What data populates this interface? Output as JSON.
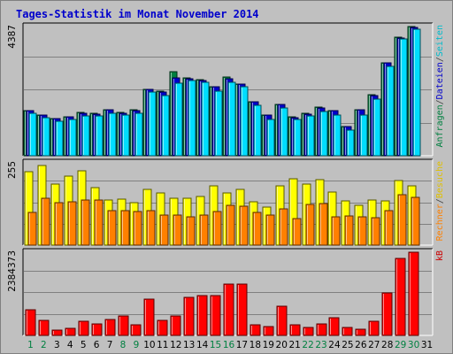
{
  "title": "Tages-Statistik im Monat November 2014",
  "chart_data": [
    {
      "type": "bar",
      "panel": "top",
      "ytick_max_label": "4387",
      "ylim": [
        0,
        4387
      ],
      "grid": true,
      "legend_vertical": [
        {
          "text": "Anfragen",
          "color": "#008040"
        },
        {
          "text": "/",
          "color": "#404040"
        },
        {
          "text": "Dateien",
          "color": "#0000cc"
        },
        {
          "text": "/",
          "color": "#404040"
        },
        {
          "text": "Seiten",
          "color": "#00bbcc"
        }
      ],
      "series": [
        {
          "name": "Anfragen",
          "color": "#008040",
          "values": [
            1530,
            1380,
            1260,
            1330,
            1460,
            1440,
            1570,
            1470,
            1550,
            2260,
            2180,
            2860,
            2640,
            2580,
            2350,
            2680,
            2440,
            1840,
            1390,
            1740,
            1310,
            1430,
            1640,
            1540,
            990,
            1560,
            2060,
            3160,
            4020,
            4380
          ]
        },
        {
          "name": "Dateien",
          "color": "#0000cc",
          "values": [
            1520,
            1370,
            1250,
            1320,
            1450,
            1420,
            1550,
            1450,
            1540,
            2250,
            2170,
            2640,
            2620,
            2560,
            2340,
            2600,
            2420,
            1830,
            1380,
            1730,
            1300,
            1420,
            1620,
            1520,
            980,
            1550,
            2050,
            3150,
            4010,
            4370
          ]
        },
        {
          "name": "Seiten",
          "color": "#00ddff",
          "values": [
            1430,
            1290,
            1180,
            1240,
            1360,
            1340,
            1430,
            1390,
            1430,
            2170,
            2050,
            2450,
            2540,
            2480,
            2200,
            2500,
            2350,
            1720,
            1240,
            1620,
            1230,
            1340,
            1510,
            1390,
            880,
            1390,
            1920,
            3040,
            3970,
            4300
          ]
        }
      ]
    },
    {
      "type": "bar",
      "panel": "middle",
      "ytick_max_label": "255",
      "ylim": [
        0,
        255
      ],
      "grid": true,
      "legend_vertical": [
        {
          "text": "Rechner",
          "color": "#ff8000"
        },
        {
          "text": "/",
          "color": "#404040"
        },
        {
          "text": "Besuche",
          "color": "#e0c000"
        }
      ],
      "series": [
        {
          "name": "Besuche",
          "color": "#ffff00",
          "values": [
            227,
            248,
            188,
            213,
            231,
            177,
            141,
            142,
            131,
            172,
            162,
            145,
            145,
            152,
            184,
            162,
            173,
            135,
            117,
            183,
            207,
            189,
            202,
            165,
            138,
            123,
            141,
            137,
            199,
            185
          ]
        },
        {
          "name": "Rechner",
          "color": "#ff8000",
          "values": [
            102,
            146,
            131,
            135,
            140,
            140,
            106,
            106,
            103,
            106,
            92,
            94,
            89,
            93,
            103,
            124,
            122,
            102,
            94,
            113,
            83,
            126,
            128,
            88,
            91,
            89,
            84,
            107,
            157,
            147
          ]
        }
      ]
    },
    {
      "type": "bar",
      "panel": "bottom",
      "ytick_max_label": "2384373",
      "ylim": [
        0,
        2384373
      ],
      "grid": true,
      "legend_vertical": [
        {
          "text": "kB",
          "color": "#cc0000"
        }
      ],
      "series": [
        {
          "name": "kB",
          "color": "#ff0000",
          "values": [
            745000,
            420000,
            145000,
            195000,
            395000,
            325000,
            445000,
            546000,
            295000,
            1050000,
            425000,
            550000,
            1085000,
            1145000,
            1145000,
            1470000,
            1470000,
            295000,
            245000,
            835000,
            295000,
            235000,
            320000,
            495000,
            230000,
            190000,
            395000,
            1225000,
            2195000,
            2380000
          ]
        }
      ]
    }
  ],
  "x_axis": {
    "labels": [
      "1",
      "2",
      "3",
      "4",
      "5",
      "6",
      "7",
      "8",
      "9",
      "10",
      "11",
      "12",
      "13",
      "14",
      "15",
      "16",
      "17",
      "18",
      "19",
      "20",
      "21",
      "22",
      "23",
      "24",
      "25",
      "26",
      "27",
      "28",
      "29",
      "30",
      "31"
    ],
    "weekend_days": [
      "1",
      "2",
      "8",
      "9",
      "15",
      "16",
      "22",
      "23",
      "29",
      "30"
    ],
    "weekend_color": "#008040",
    "weekday_color": "#000000"
  }
}
